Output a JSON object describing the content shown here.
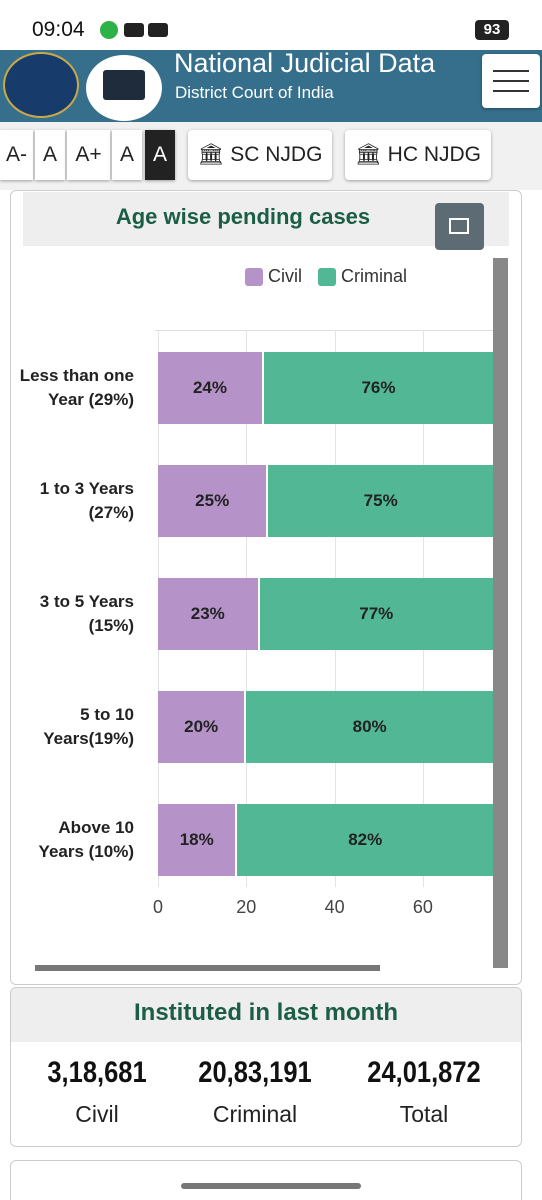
{
  "status_bar": {
    "time": "09:04",
    "battery": "93"
  },
  "header": {
    "title": "National Judicial Data",
    "subtitle": "District Court of India"
  },
  "font_buttons": [
    "A-",
    "A",
    "A+",
    "A",
    "A"
  ],
  "nav_buttons": [
    "SC NJDG",
    "HC NJDG"
  ],
  "chart_data": {
    "type": "bar",
    "orientation": "horizontal",
    "stacked": true,
    "title": "Age wise pending cases",
    "categories": [
      "Less than one Year (29%)",
      "1 to 3 Years (27%)",
      "3 to 5 Years (15%)",
      "5 to 10 Years(19%)",
      "Above 10 Years (10%)"
    ],
    "series": [
      {
        "name": "Civil",
        "color": "#b593c9",
        "values": [
          24,
          25,
          23,
          20,
          18
        ],
        "value_labels": [
          "24%",
          "25%",
          "23%",
          "20%",
          "18%"
        ]
      },
      {
        "name": "Criminal",
        "color": "#52b795",
        "values": [
          76,
          75,
          77,
          80,
          82
        ],
        "value_labels": [
          "76%",
          "75%",
          "77%",
          "80%",
          "82%"
        ]
      }
    ],
    "xlim": [
      0,
      100
    ],
    "xticks": [
      0,
      20,
      40,
      60
    ],
    "grid": true,
    "legend": "top"
  },
  "instituted": {
    "title": "Instituted in last month",
    "stats": [
      {
        "value": "3,18,681",
        "label": "Civil"
      },
      {
        "value": "20,83,191",
        "label": "Criminal"
      },
      {
        "value": "24,01,872",
        "label": "Total"
      }
    ]
  }
}
